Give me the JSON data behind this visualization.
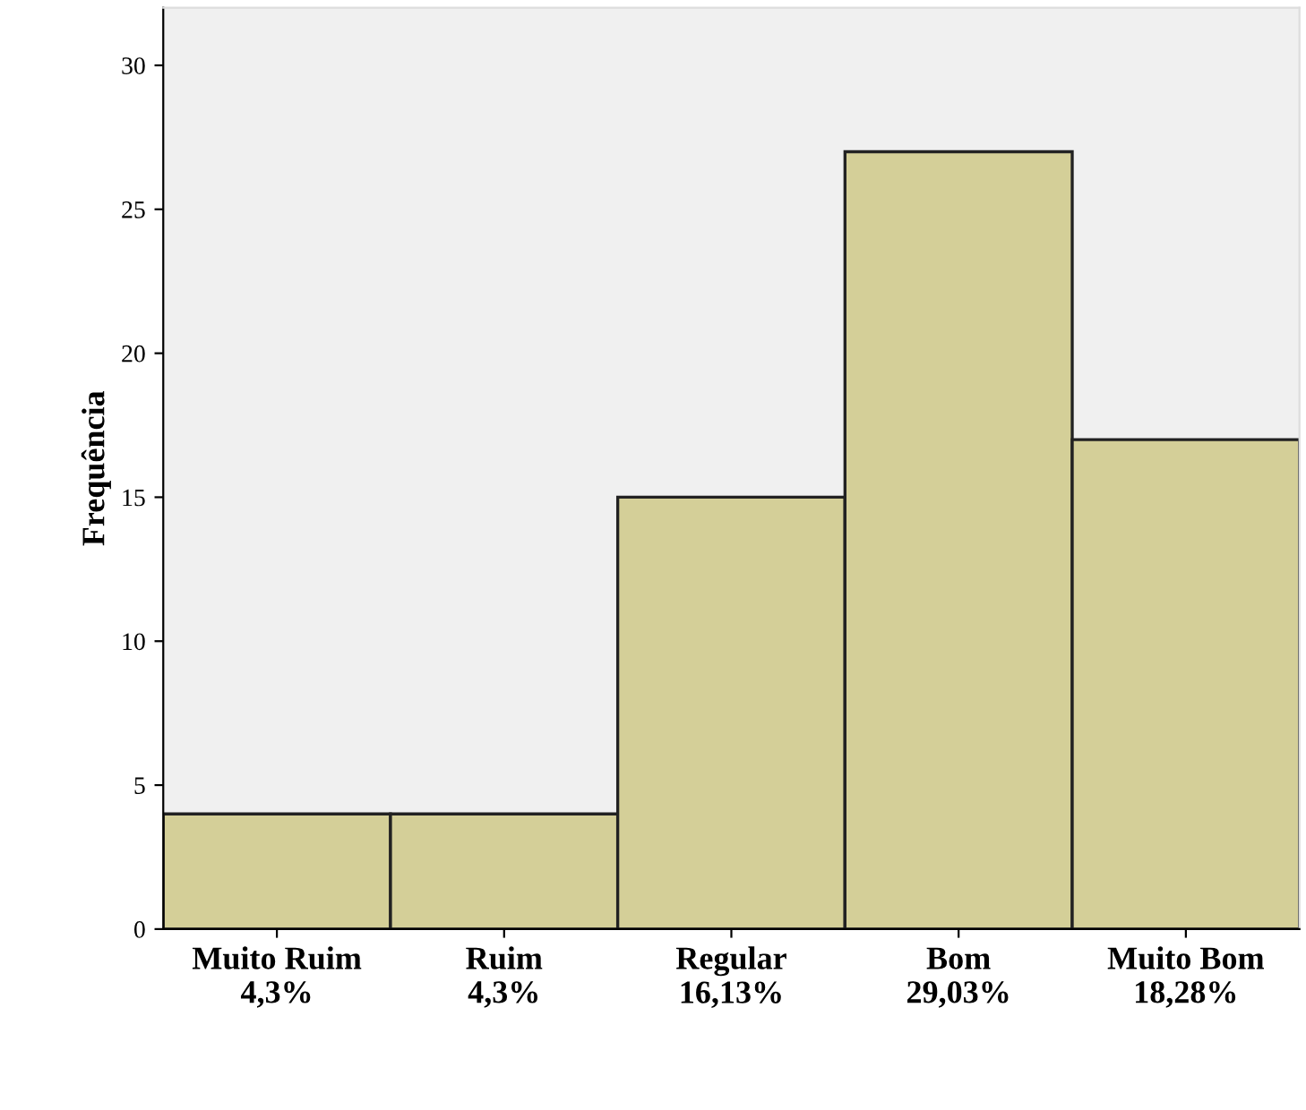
{
  "chart_data": {
    "type": "bar",
    "ylabel": "Frequência",
    "categories": [
      "Muito Ruim\n4,3%",
      "Ruim\n4,3%",
      "Regular\n16,13%",
      "Bom\n29,03%",
      "Muito Bom\n18,28%"
    ],
    "values": [
      4,
      4,
      15,
      27,
      17
    ],
    "color": "#d4cf98",
    "ylim": [
      0,
      32
    ],
    "yticks": [
      0,
      5,
      10,
      15,
      20,
      25,
      30
    ],
    "grid": false
  }
}
